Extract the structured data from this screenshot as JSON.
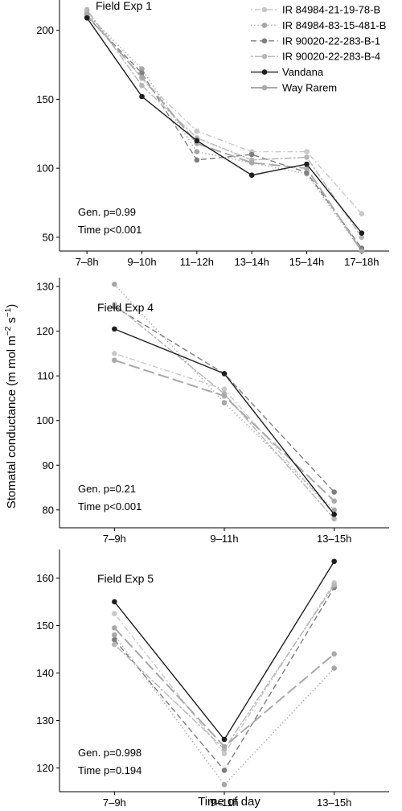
{
  "y_label": "Stomatal conductance (m mol m",
  "y_label_sup1": "−2",
  "y_label_mid": " s",
  "y_label_sup2": "−1",
  "y_label_end": ")",
  "x_label": "Time of day",
  "series_styles": [
    {
      "color": "#c8c8c8",
      "dash": "2 3 7 3",
      "width": 1.4
    },
    {
      "color": "#a6a6a6",
      "dash": "1.2 3",
      "width": 1.6
    },
    {
      "color": "#7e7e7e",
      "dash": "7 4",
      "width": 1.4
    },
    {
      "color": "#b6b6b6",
      "dash": "3 2 9 2",
      "width": 1.4
    },
    {
      "color": "#1e1e1e",
      "dash": "",
      "width": 1.4
    },
    {
      "color": "#a9a9a9",
      "dash": "14 5",
      "width": 2.0
    }
  ],
  "chart_data": [
    {
      "type": "line",
      "title": "Field Exp 1",
      "categories": [
        "7–8h",
        "9–10h",
        "11–12h",
        "13–14h",
        "15–14h",
        "17–18h"
      ],
      "ylim": [
        40,
        222
      ],
      "yticks": [
        50,
        100,
        150,
        200
      ],
      "legend": "top-right",
      "annotations": [
        "Gen. p=0.99",
        "Time p<0.001"
      ],
      "series": [
        {
          "name": "IR 84984-21-19-78-B",
          "values": [
            214,
            165,
            127,
            112,
            112,
            67
          ]
        },
        {
          "name": "IR 84984-83-15-481-B",
          "values": [
            212,
            172,
            112,
            104,
            96,
            40
          ]
        },
        {
          "name": "IR 90020-22-283-B-1",
          "values": [
            210,
            169,
            106,
            110,
            97,
            42
          ]
        },
        {
          "name": "IR 90020-22-283-B-4",
          "values": [
            215,
            160,
            122,
            106,
            108,
            50
          ]
        },
        {
          "name": "Vandana",
          "values": [
            209,
            152,
            120,
            95,
            103,
            53
          ]
        },
        {
          "name": "Way Rarem",
          "values": [
            211,
            166,
            118,
            104,
            100,
            40
          ]
        }
      ]
    },
    {
      "type": "line",
      "title": "Field Exp 4",
      "categories": [
        "7–9h",
        "9–11h",
        "13–15h"
      ],
      "ylim": [
        76,
        132
      ],
      "yticks": [
        80,
        90,
        100,
        110,
        120,
        130
      ],
      "annotations": [
        "Gen. p=0.21",
        "Time p<0.001"
      ],
      "series": [
        {
          "name": "IR 84984-21-19-78-B",
          "values": [
            115,
            107,
            79
          ]
        },
        {
          "name": "IR 84984-83-15-481-B",
          "values": [
            130.5,
            104,
            80
          ]
        },
        {
          "name": "IR 90020-22-283-B-1",
          "values": [
            125.5,
            110.5,
            84
          ]
        },
        {
          "name": "IR 90020-22-283-B-4",
          "values": [
            126,
            106,
            78
          ]
        },
        {
          "name": "Vandana",
          "values": [
            120.5,
            110.5,
            79
          ]
        },
        {
          "name": "Way Rarem",
          "values": [
            113.5,
            105.5,
            82
          ]
        }
      ]
    },
    {
      "type": "line",
      "title": "Field Exp 5",
      "categories": [
        "7–9h",
        "9–11h",
        "13–15h"
      ],
      "ylim": [
        115,
        166
      ],
      "yticks": [
        120,
        130,
        140,
        150,
        160
      ],
      "annotations": [
        "Gen. p=0.998",
        "Time p=0.194"
      ],
      "series": [
        {
          "name": "IR 84984-21-19-78-B",
          "values": [
            152.5,
            123,
            159
          ]
        },
        {
          "name": "IR 84984-83-15-481-B",
          "values": [
            148,
            116.5,
            141
          ]
        },
        {
          "name": "IR 90020-22-283-B-1",
          "values": [
            147,
            119.5,
            158
          ]
        },
        {
          "name": "IR 90020-22-283-B-4",
          "values": [
            146,
            124,
            158.5
          ]
        },
        {
          "name": "Vandana",
          "values": [
            155,
            126,
            163.5
          ]
        },
        {
          "name": "Way Rarem",
          "values": [
            149.5,
            124.5,
            144
          ]
        }
      ]
    }
  ]
}
